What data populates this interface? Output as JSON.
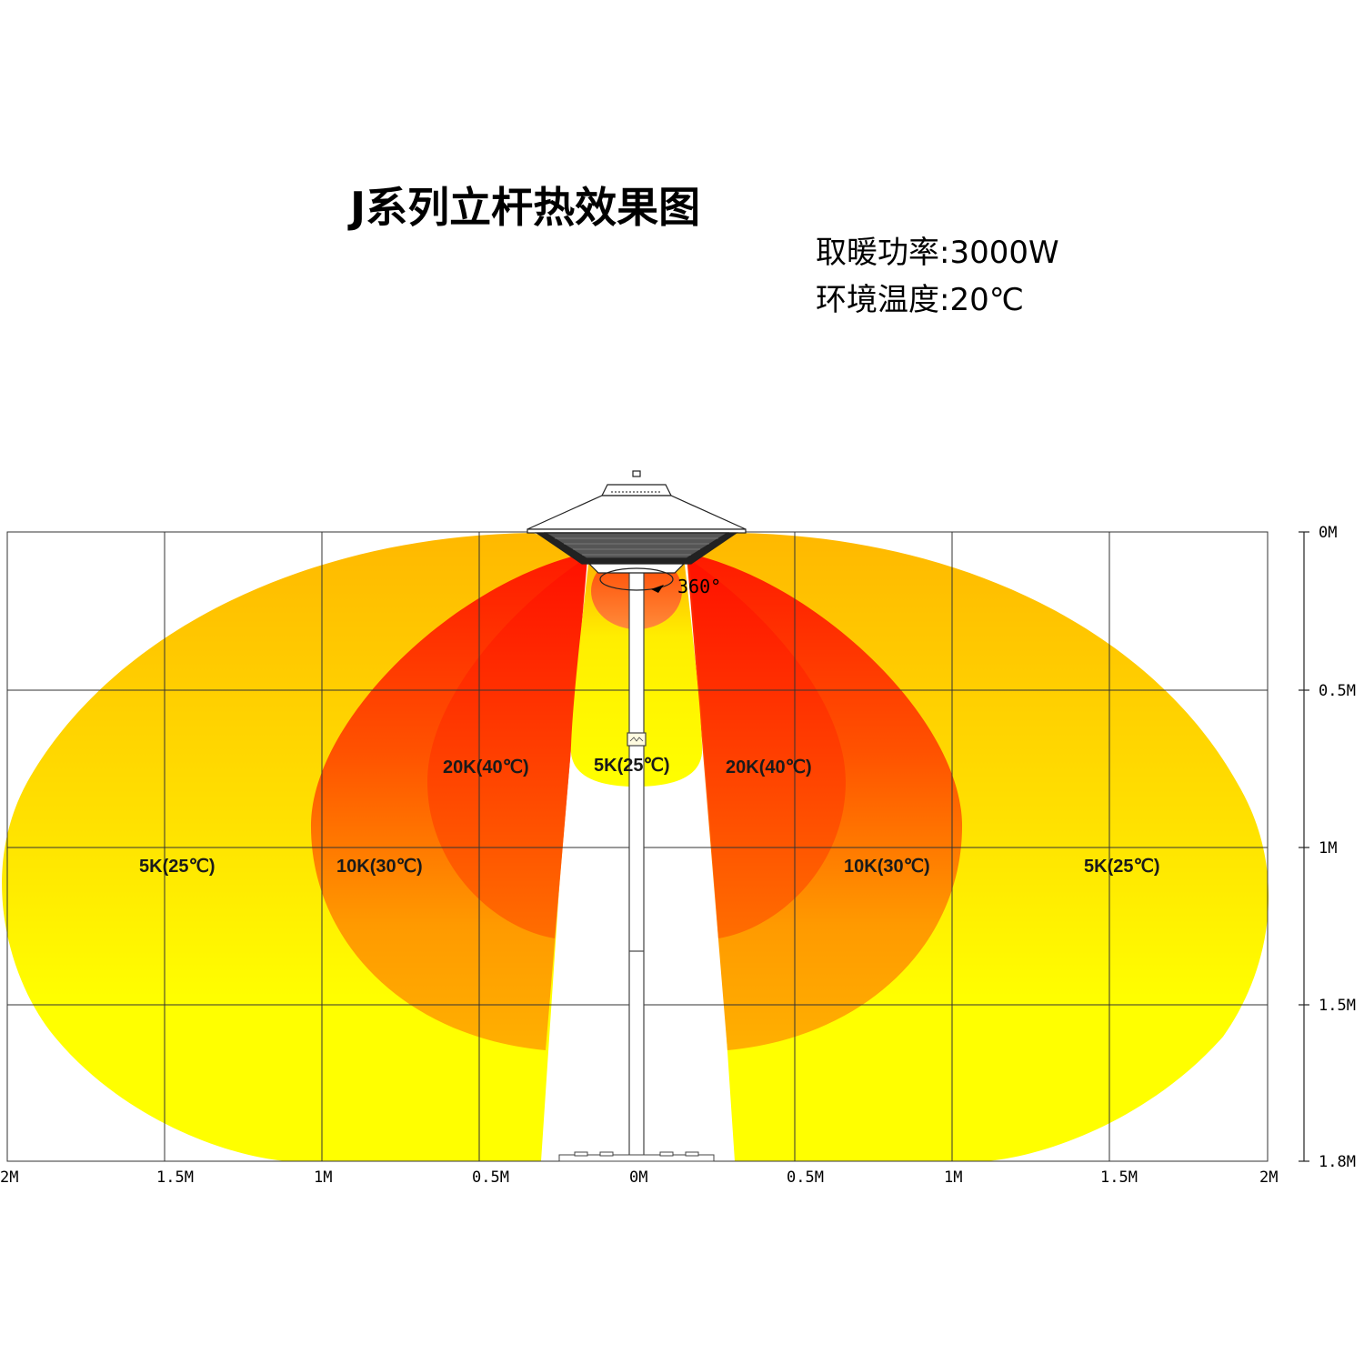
{
  "header": {
    "title": "J系列立杆热效果图",
    "power_label": "取暖功率",
    "power_value": "3000W",
    "temp_label": "环境温度",
    "temp_value": "20℃"
  },
  "diagram": {
    "rotation_label": "360°",
    "zones": {
      "outer": "5K(25℃)",
      "middle": "10K(30℃)",
      "inner": "20K(40℃)",
      "below": "5K(25℃)"
    },
    "zone_colors": {
      "yellow": "#ffff00",
      "orange": "#ffbf00",
      "red": "#ff1a00"
    },
    "x_axis_labels": [
      "2M",
      "1.5M",
      "1M",
      "0.5M",
      "0M",
      "0.5M",
      "1M",
      "1.5M",
      "2M"
    ],
    "y_axis_labels": [
      "0M",
      "0.5M",
      "1M",
      "1.5M",
      "1.8M"
    ]
  }
}
